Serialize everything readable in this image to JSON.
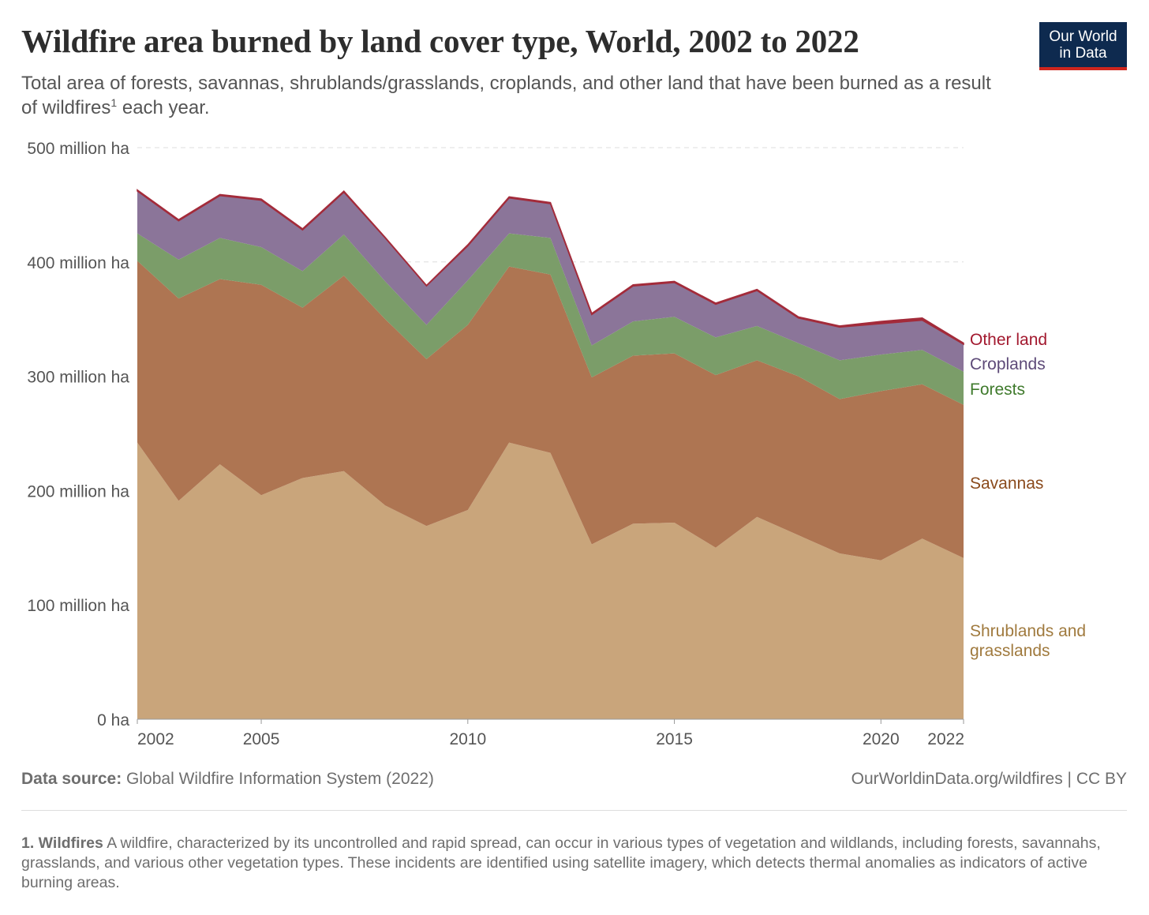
{
  "header": {
    "title": "Wildfire area burned by land cover type, World, 2002 to 2022",
    "subtitle": "Total area of forests, savannas, shrublands/grasslands, croplands, and other land that have been burned as a result of wildfires",
    "subtitle_sup": "1",
    "subtitle_end": " each year.",
    "logo": "Our World in Data"
  },
  "footer": {
    "source_label": "Data source:",
    "source": " Global Wildfire Information System (2022)",
    "link": "OurWorldinData.org/wildfires | CC BY"
  },
  "note": {
    "label": "1. Wildfires",
    "text": " A wildfire, characterized by its uncontrolled and rapid spread, can occur in various types of vegetation and wildlands, including forests, savannahs, grasslands, and various other vegetation types. These incidents are identified using satellite imagery, which detects thermal anomalies as indicators of active burning areas."
  },
  "chart_data": {
    "type": "area",
    "stacked": true,
    "title": "Wildfire area burned by land cover type, World, 2002 to 2022",
    "ylim": [
      0,
      500
    ],
    "grid": true,
    "y_ticks": [
      {
        "v": 0,
        "label": "0 ha"
      },
      {
        "v": 100,
        "label": "100 million ha"
      },
      {
        "v": 200,
        "label": "200 million ha"
      },
      {
        "v": 300,
        "label": "300 million ha"
      },
      {
        "v": 400,
        "label": "400 million ha"
      },
      {
        "v": 500,
        "label": "500 million ha"
      }
    ],
    "x_ticks": [
      2002,
      2005,
      2010,
      2015,
      2020,
      2022
    ],
    "x": [
      2002,
      2003,
      2004,
      2005,
      2006,
      2007,
      2008,
      2009,
      2010,
      2011,
      2012,
      2013,
      2014,
      2015,
      2016,
      2017,
      2018,
      2019,
      2020,
      2021,
      2022
    ],
    "unit": "million ha",
    "series": [
      {
        "name": "Shrublands and grasslands",
        "color": "#c9a57b",
        "label_color": "#a07a3e",
        "values": [
          242,
          191,
          223,
          196,
          211,
          217,
          187,
          169,
          183,
          242,
          233,
          153,
          171,
          172,
          150,
          177,
          161,
          145,
          139,
          158,
          141
        ]
      },
      {
        "name": "Savannas",
        "color": "#ae7552",
        "label_color": "#8a4a1c",
        "values": [
          159,
          177,
          162,
          184,
          149,
          171,
          163,
          146,
          162,
          154,
          156,
          146,
          147,
          148,
          151,
          137,
          139,
          135,
          148,
          135,
          134
        ]
      },
      {
        "name": "Forests",
        "color": "#7b9d69",
        "label_color": "#3f7a2c",
        "values": [
          24,
          34,
          36,
          33,
          32,
          36,
          33,
          30,
          39,
          29,
          32,
          28,
          30,
          32,
          33,
          30,
          29,
          34,
          32,
          30,
          29
        ]
      },
      {
        "name": "Croplands",
        "color": "#8b7599",
        "label_color": "#5d4a78",
        "values": [
          37,
          34,
          37,
          41,
          36,
          37,
          38,
          34,
          30,
          31,
          30,
          27,
          31,
          30,
          29,
          31,
          22,
          29,
          27,
          26,
          24
        ]
      },
      {
        "name": "Other land",
        "color": "#a32b3a",
        "label_color": "#a2182e",
        "values": [
          1,
          1,
          1,
          1,
          1,
          1,
          0.5,
          0.5,
          1,
          1,
          1,
          1,
          1,
          1,
          1,
          1,
          1,
          1,
          2,
          2,
          1
        ]
      }
    ]
  }
}
